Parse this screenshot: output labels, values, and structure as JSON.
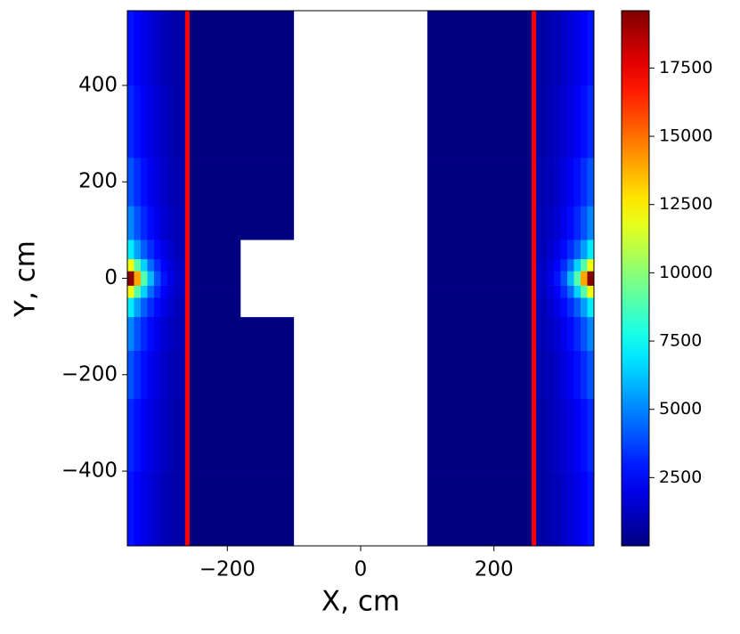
{
  "chart_data": {
    "type": "heatmap",
    "x_label": "X, cm",
    "y_label": "Y, cm",
    "xlim": [
      -350,
      350
    ],
    "ylim": [
      -555,
      555
    ],
    "xticks": [
      {
        "value": -200,
        "label": "−200"
      },
      0,
      200
    ],
    "yticks": [
      {
        "value": -400,
        "label": "−400"
      },
      {
        "value": -200,
        "label": "−200"
      },
      0,
      200,
      400
    ],
    "colormap": "jet",
    "under_color": "#ffffff",
    "clim": [
      0,
      19600
    ],
    "cticks": [
      2500,
      5000,
      7500,
      10000,
      12500,
      15000,
      17500
    ],
    "xbins": [
      -350,
      -340,
      -330,
      -320,
      -310,
      -300,
      -290,
      -280,
      -260,
      -220,
      -180,
      -100,
      100,
      180,
      220,
      260,
      280,
      290,
      300,
      310,
      320,
      330,
      340,
      350
    ],
    "ybins": [
      -555,
      -400,
      -250,
      -150,
      -80,
      -40,
      -15,
      15,
      40,
      80,
      150,
      250,
      400,
      555
    ],
    "z": [
      [
        2800,
        2400,
        2000,
        1700,
        1400,
        1100,
        900,
        700,
        20,
        6,
        2,
        0,
        3,
        10,
        25,
        700,
        900,
        1100,
        1400,
        1700,
        2000,
        2400,
        2800
      ],
      [
        3200,
        2700,
        2300,
        1900,
        1600,
        1300,
        1000,
        800,
        20,
        6,
        2,
        0,
        3,
        10,
        25,
        800,
        1000,
        1300,
        1600,
        1900,
        2300,
        2700,
        3200
      ],
      [
        4000,
        3300,
        2700,
        2200,
        1800,
        1400,
        1100,
        900,
        20,
        6,
        2,
        0,
        3,
        10,
        25,
        900,
        1100,
        1400,
        1800,
        2200,
        2700,
        3300,
        4000
      ],
      [
        5000,
        4000,
        3200,
        2600,
        2100,
        1600,
        1300,
        1000,
        20,
        6,
        2,
        0,
        3,
        10,
        25,
        1000,
        1300,
        1600,
        2100,
        2600,
        3200,
        4000,
        5000
      ],
      [
        7000,
        5500,
        4200,
        3300,
        2600,
        2000,
        1500,
        1100,
        15,
        4,
        0,
        0,
        1,
        6,
        20,
        1100,
        1500,
        2000,
        2600,
        3300,
        4200,
        5500,
        7000
      ],
      [
        12000,
        9000,
        6500,
        4500,
        3300,
        2400,
        1800,
        1300,
        15,
        4,
        0,
        0,
        1,
        6,
        20,
        1300,
        1800,
        2400,
        3300,
        4500,
        6500,
        9000,
        12000
      ],
      [
        19500,
        14000,
        9000,
        6000,
        4000,
        2800,
        2000,
        1400,
        15,
        4,
        0,
        0,
        1,
        6,
        20,
        1400,
        2000,
        2800,
        4000,
        6000,
        9000,
        14000,
        19500
      ],
      [
        12000,
        9000,
        6500,
        4500,
        3300,
        2400,
        1800,
        1300,
        15,
        4,
        0,
        0,
        1,
        6,
        20,
        1300,
        1800,
        2400,
        3300,
        4500,
        6500,
        9000,
        12000
      ],
      [
        7000,
        5500,
        4200,
        3300,
        2600,
        2000,
        1500,
        1100,
        15,
        4,
        0,
        0,
        1,
        6,
        20,
        1100,
        1500,
        2000,
        2600,
        3300,
        4200,
        5500,
        7000
      ],
      [
        5000,
        4000,
        3200,
        2600,
        2100,
        1600,
        1300,
        1000,
        25,
        10,
        3,
        0,
        2,
        6,
        20,
        1000,
        1300,
        1600,
        2100,
        2600,
        3200,
        4000,
        5000
      ],
      [
        4000,
        3300,
        2700,
        2200,
        1800,
        1400,
        1100,
        900,
        25,
        10,
        3,
        0,
        2,
        6,
        20,
        900,
        1100,
        1400,
        1800,
        2200,
        2700,
        3300,
        4000
      ],
      [
        3200,
        2700,
        2300,
        1900,
        1600,
        1300,
        1000,
        800,
        25,
        10,
        3,
        0,
        2,
        6,
        20,
        800,
        1000,
        1300,
        1600,
        1900,
        2300,
        2700,
        3200
      ],
      [
        2800,
        2400,
        2000,
        1700,
        1400,
        1100,
        900,
        700,
        25,
        10,
        3,
        0,
        2,
        6,
        20,
        700,
        900,
        1100,
        1400,
        1700,
        2000,
        2400,
        2800
      ]
    ],
    "vlines": [
      -260,
      260
    ],
    "vline_color": "#ff0000"
  }
}
